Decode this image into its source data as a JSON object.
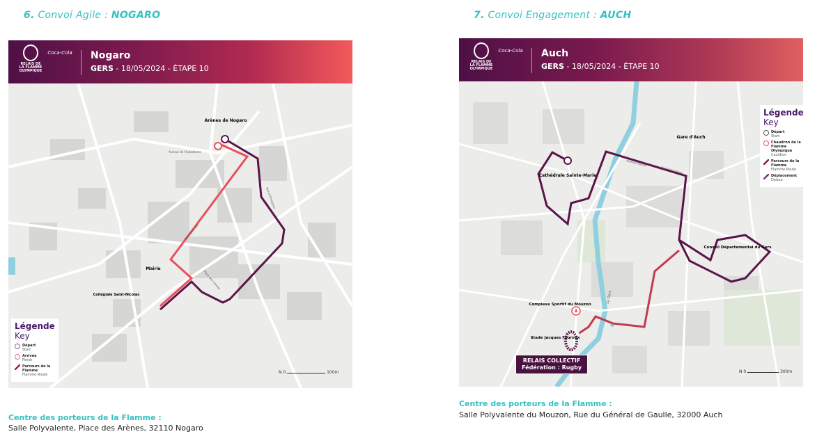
{
  "sections": [
    {
      "number": "6.",
      "title_prefix": "Convoi Agile :",
      "title_city": "NOGARO",
      "header": {
        "city": "Nogaro",
        "dept": "GERS",
        "date_stage": " - 18/05/2024 - ÉTAPE 10"
      },
      "logo": {
        "lines": "RELAIS DE LA FLAMME OLYMPIQUE PARIS 2024",
        "sponsor": "Coca-Cola"
      },
      "map_labels": {
        "arenes": "Arènes de Nogaro",
        "mairie": "Mairie",
        "collegiale": "Collégiale Saint-Nicolas",
        "rue_nationale": "Rue Nationale",
        "avenue": "Avenue de l'Autodrome",
        "place": "Place des Cannes",
        "rue_armagnac": "Rue d'Armagnac"
      },
      "legend": {
        "title": "Légende",
        "subtitle": "Key",
        "items": [
          {
            "label": "Départ",
            "sub": "Start",
            "icon": "start-circle-icon"
          },
          {
            "label": "Arrivée",
            "sub": "Finish",
            "icon": "finish-circle-icon"
          },
          {
            "label": "Parcours de la Flamme",
            "sub": "Flamme Route",
            "icon": "route-line-icon"
          }
        ]
      },
      "scale": {
        "n": "N",
        "zero": "0",
        "max": "100m"
      },
      "footer": {
        "heading": "Centre des porteurs de la Flamme :",
        "address": "Salle Polyvalente, Place des Arènes, 32110 Nogaro"
      }
    },
    {
      "number": "7.",
      "title_prefix": "Convoi Engagement :",
      "title_city": "AUCH",
      "header": {
        "city": "Auch",
        "dept": "GERS",
        "date_stage": " - 18/05/2024 - ÉTAPE 10"
      },
      "logo": {
        "lines": "RELAIS DE LA FLAMME OLYMPIQUE PARIS 2024",
        "sponsor": "Coca-Cola"
      },
      "map_labels": {
        "cathedrale": "Cathédrale Sainte-Marie",
        "gare": "Gare d'Auch",
        "conseil": "Conseil Départemental du Gers",
        "complexe": "Complexe Sportif du Mouzon",
        "stade": "Stade Jacques Fouroux",
        "river": "Le Gers",
        "avenue": "Avenue Hoche",
        "rue": "Rue Victor Hugo"
      },
      "relais": {
        "line1": "RELAIS COLLECTIF",
        "line2": "Fédération : Rugby"
      },
      "legend": {
        "title": "Légende",
        "subtitle": "Key",
        "items": [
          {
            "label": "Départ",
            "sub": "Start",
            "icon": "start-circle-icon"
          },
          {
            "label": "Chaudron de la Flamme Olympique",
            "sub": "Cauldron",
            "icon": "cauldron-icon"
          },
          {
            "label": "Parcours de la Flamme",
            "sub": "Flamme Route",
            "icon": "route-line-icon"
          },
          {
            "label": "Déplacement",
            "sub": "Detour",
            "icon": "detour-line-icon"
          }
        ]
      },
      "scale": {
        "n": "N",
        "zero": "0",
        "max": "300m"
      },
      "footer": {
        "heading": "Centre des porteurs de la Flamme :",
        "address": "Salle Polyvalente du Mouzon, Rue du Général de Gaulle, 32000 Auch"
      }
    }
  ],
  "colors": {
    "accent": "#33c1c1",
    "route_dark": "#5a1448",
    "route_red": "#e8505a",
    "river": "#8fd0e0"
  }
}
